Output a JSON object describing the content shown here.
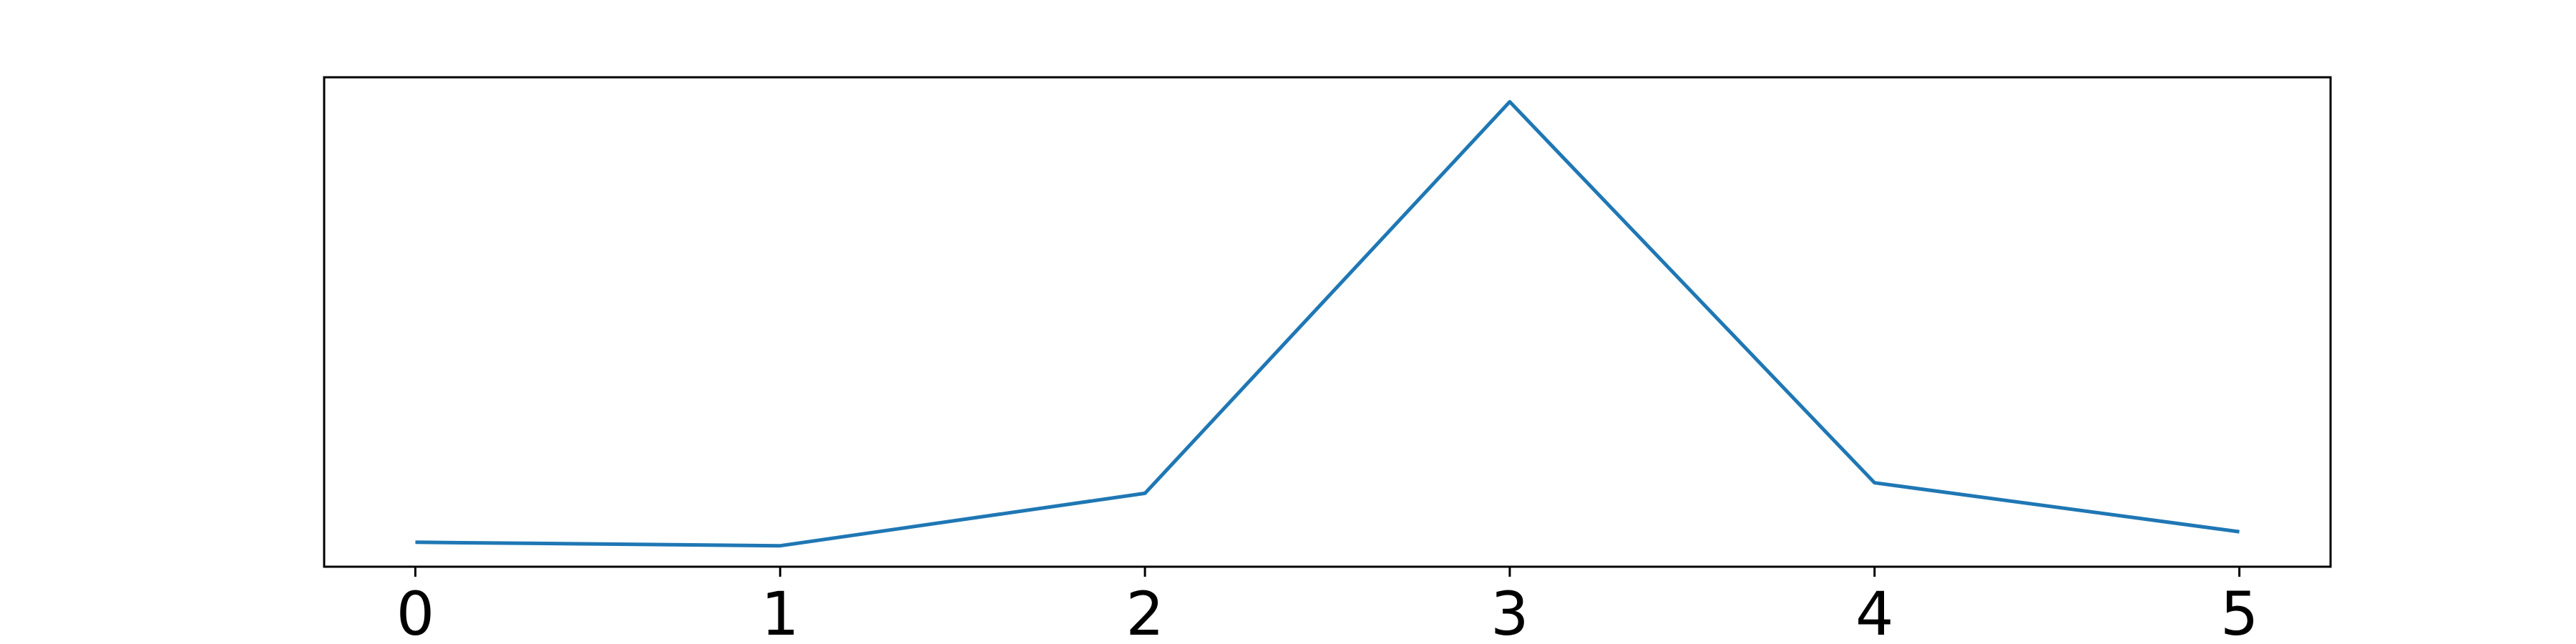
{
  "chart_data": {
    "type": "line",
    "x": [
      0,
      1,
      2,
      3,
      4,
      5
    ],
    "series": [
      {
        "values": [
          0.6,
          0.5,
          2.0,
          13.2,
          2.3,
          0.9
        ],
        "color": "#1f77b4"
      }
    ],
    "xlim": [
      -0.25,
      5.25
    ],
    "ylim": [
      -0.1,
      13.9
    ],
    "xticks": [
      "0",
      "1",
      "2",
      "3",
      "4",
      "5"
    ],
    "yticks_visible": false,
    "grid": false,
    "legend": "none",
    "title": "",
    "xlabel": "",
    "ylabel": ""
  }
}
